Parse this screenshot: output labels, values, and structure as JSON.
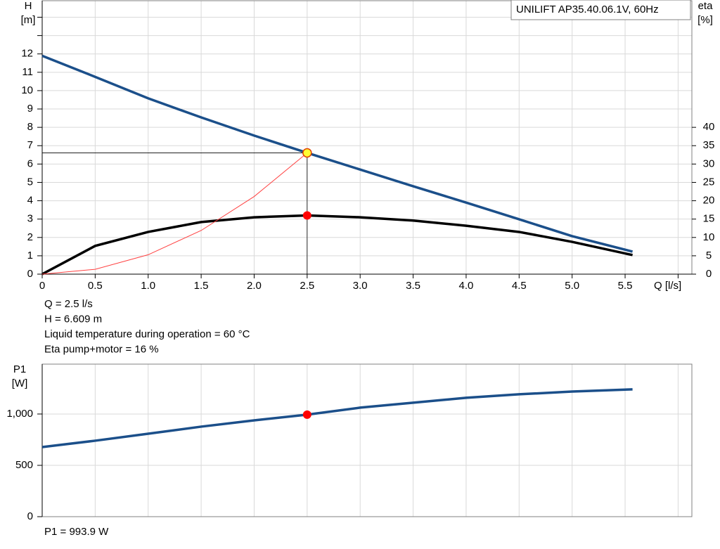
{
  "chart_data": [
    {
      "type": "line",
      "title": "UNILIFT AP35.40.06.1V, 60Hz",
      "x_label": "Q [l/s]",
      "y_label": "H",
      "y_unit": "[m]",
      "y2_label": "eta",
      "y2_unit": "[%]",
      "xlim": [
        0,
        6.13
      ],
      "xticks": [
        0,
        0.5,
        {
          "value": 1,
          "label": "1.0"
        },
        1.5,
        {
          "value": 2,
          "label": "2.0"
        },
        2.5,
        {
          "value": 3,
          "label": "3.0"
        },
        3.5,
        {
          "value": 4,
          "label": "4.0"
        },
        4.5,
        {
          "value": 5,
          "label": "5.0"
        },
        5.5
      ],
      "xgrid": [
        6
      ],
      "ylim": [
        0,
        14.9
      ],
      "yticks": [
        0,
        1,
        2,
        3,
        4,
        5,
        6,
        7,
        8,
        9,
        10,
        11,
        12
      ],
      "ygrid": [
        13,
        14
      ],
      "y2lim": [
        0,
        74.5
      ],
      "y2ticks": [
        0,
        5,
        10,
        15,
        20,
        25,
        30,
        35,
        40
      ],
      "grid": true,
      "series": [
        {
          "color": "#1b4f8a",
          "x": [
            0,
            0.5,
            1,
            1.5,
            2,
            2.5,
            3,
            3.5,
            4,
            4.5,
            5,
            5.57
          ],
          "values": [
            11.9,
            10.75,
            9.58,
            8.54,
            7.55,
            6.609,
            5.7,
            4.79,
            3.9,
            2.99,
            2.07,
            1.23
          ]
        },
        {
          "color": "#000000",
          "axis": "y2",
          "x": [
            0,
            0.5,
            1,
            1.5,
            2,
            2.5,
            3,
            3.5,
            4,
            4.5,
            5,
            5.57
          ],
          "values": [
            0,
            7.7,
            11.5,
            14.2,
            15.5,
            16,
            15.5,
            14.6,
            13.2,
            11.5,
            8.8,
            5.2
          ]
        },
        {
          "color": "#ff4040",
          "thin": true,
          "x": [
            0,
            0.5,
            1,
            1.5,
            2,
            2.5
          ],
          "values": [
            0,
            0.264,
            1.057,
            2.38,
            4.23,
            6.609
          ]
        }
      ],
      "points": [
        {
          "x": 2.5,
          "y": 6.609,
          "color": "#ffff33",
          "guides": true
        },
        {
          "x": 2.5,
          "y": 16,
          "axis": "y2",
          "color": "#ff0000"
        }
      ],
      "annotations": [
        "Q = 2.5 l/s",
        "H = 6.609 m",
        "Liquid temperature during operation = 60 °C",
        "Eta pump+motor = 16 %"
      ]
    },
    {
      "type": "line",
      "y_label": "P1",
      "y_unit": "[W]",
      "xlim": [
        0,
        6.13
      ],
      "xgrid": [
        0.5,
        1,
        1.5,
        2,
        2.5,
        3,
        3.5,
        4,
        4.5,
        5,
        5.5,
        6
      ],
      "ylim": [
        0,
        1486
      ],
      "yticks": [
        0,
        500,
        {
          "value": 1000,
          "label": "1,000"
        }
      ],
      "grid": true,
      "series": [
        {
          "color": "#1b4f8a",
          "x": [
            0,
            0.5,
            1,
            1.5,
            2,
            2.5,
            3,
            3.5,
            4,
            4.5,
            5,
            5.57
          ],
          "values": [
            678,
            740,
            808,
            877,
            938,
            993.9,
            1062,
            1110,
            1158,
            1192,
            1219,
            1240
          ]
        }
      ],
      "points": [
        {
          "x": 2.5,
          "y": 993.9,
          "color": "#ff0000"
        }
      ],
      "annotations": [
        "P1 = 993.9 W"
      ]
    }
  ]
}
